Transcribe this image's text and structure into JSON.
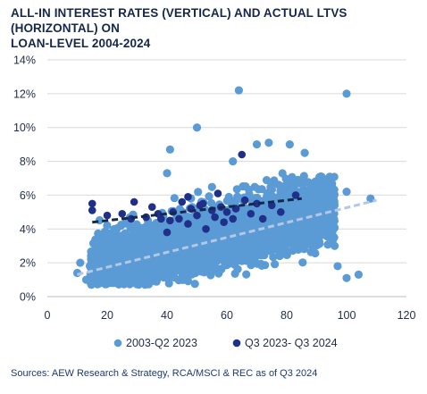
{
  "title_line1": "ALL-IN INTEREST RATES (VERTICAL) AND ACTUAL LTVS (HORIZONTAL) ON",
  "title_line2": "LOAN-LEVEL 2004-2024",
  "footer": "Sources: AEW Research & Strategy, RCA/MSCI & REC as of Q3 2024",
  "colors": {
    "series1": "#5b9bd5",
    "series2": "#1f2f8a",
    "trend1": "#b4c7e7",
    "trend2": "#14284b"
  },
  "chart_data": {
    "type": "scatter",
    "xlim": [
      0,
      120
    ],
    "ylim": [
      0,
      14
    ],
    "x_ticks": [
      "0",
      "20",
      "40",
      "60",
      "80",
      "100",
      "120"
    ],
    "y_ticks": [
      "0%",
      "2%",
      "4%",
      "6%",
      "8%",
      "10%",
      "12%",
      "14%"
    ],
    "grid": "horizontal",
    "legend_position": "bottom",
    "series": [
      {
        "name": "2003-Q2 2023",
        "marker": "circle",
        "trendline": {
          "x": [
            10,
            110
          ],
          "y": [
            1.3,
            5.7
          ],
          "style": "dashed"
        },
        "outliers": [
          {
            "x": 64,
            "y": 12.2
          },
          {
            "x": 100,
            "y": 12.0
          },
          {
            "x": 50,
            "y": 10.0
          },
          {
            "x": 41,
            "y": 8.7
          },
          {
            "x": 70,
            "y": 9.0
          },
          {
            "x": 74,
            "y": 9.1
          },
          {
            "x": 81,
            "y": 9.0
          },
          {
            "x": 62,
            "y": 8.0
          },
          {
            "x": 108,
            "y": 5.8
          },
          {
            "x": 104,
            "y": 1.3
          },
          {
            "x": 100,
            "y": 1.1
          },
          {
            "x": 11,
            "y": 2.0
          },
          {
            "x": 10,
            "y": 1.4
          },
          {
            "x": 100,
            "y": 6.2
          },
          {
            "x": 13,
            "y": 1.0
          },
          {
            "x": 40,
            "y": 7.3
          },
          {
            "x": 86,
            "y": 8.5
          },
          {
            "x": 96,
            "y": 3.0
          },
          {
            "x": 97,
            "y": 1.8
          },
          {
            "x": 93,
            "y": 6.5
          }
        ],
        "cloud_x_range": [
          14,
          96
        ],
        "cloud_count": 2600,
        "cloud_trend_y_at_x": [
          [
            10,
            1.3
          ],
          [
            110,
            5.7
          ]
        ]
      },
      {
        "name": "Q3 2023- Q3 2024",
        "marker": "circle",
        "trendline": {
          "x": [
            15,
            85
          ],
          "y": [
            4.4,
            5.8
          ],
          "style": "dashed"
        },
        "points": [
          {
            "x": 15,
            "y": 5.5
          },
          {
            "x": 15,
            "y": 5.1
          },
          {
            "x": 20,
            "y": 4.8
          },
          {
            "x": 25,
            "y": 4.9
          },
          {
            "x": 28,
            "y": 4.6
          },
          {
            "x": 29,
            "y": 5.6
          },
          {
            "x": 33,
            "y": 4.7
          },
          {
            "x": 35,
            "y": 5.3
          },
          {
            "x": 38,
            "y": 4.6
          },
          {
            "x": 40,
            "y": 3.8
          },
          {
            "x": 41,
            "y": 4.5
          },
          {
            "x": 42,
            "y": 5.0
          },
          {
            "x": 44,
            "y": 4.6
          },
          {
            "x": 45,
            "y": 5.6
          },
          {
            "x": 47,
            "y": 4.3
          },
          {
            "x": 48,
            "y": 5.2
          },
          {
            "x": 50,
            "y": 4.8
          },
          {
            "x": 51,
            "y": 5.4
          },
          {
            "x": 52,
            "y": 5.5
          },
          {
            "x": 53,
            "y": 4.0
          },
          {
            "x": 55,
            "y": 5.1
          },
          {
            "x": 56,
            "y": 4.7
          },
          {
            "x": 58,
            "y": 5.3
          },
          {
            "x": 59,
            "y": 4.4
          },
          {
            "x": 60,
            "y": 5.0
          },
          {
            "x": 62,
            "y": 4.6
          },
          {
            "x": 63,
            "y": 5.2
          },
          {
            "x": 65,
            "y": 8.4
          },
          {
            "x": 66,
            "y": 5.7
          },
          {
            "x": 68,
            "y": 4.9
          },
          {
            "x": 70,
            "y": 5.5
          },
          {
            "x": 72,
            "y": 4.6
          },
          {
            "x": 75,
            "y": 5.4
          },
          {
            "x": 78,
            "y": 5.0
          },
          {
            "x": 83,
            "y": 6.0
          },
          {
            "x": 47,
            "y": 5.9
          },
          {
            "x": 37,
            "y": 4.9
          },
          {
            "x": 57,
            "y": 6.1
          }
        ]
      }
    ]
  }
}
